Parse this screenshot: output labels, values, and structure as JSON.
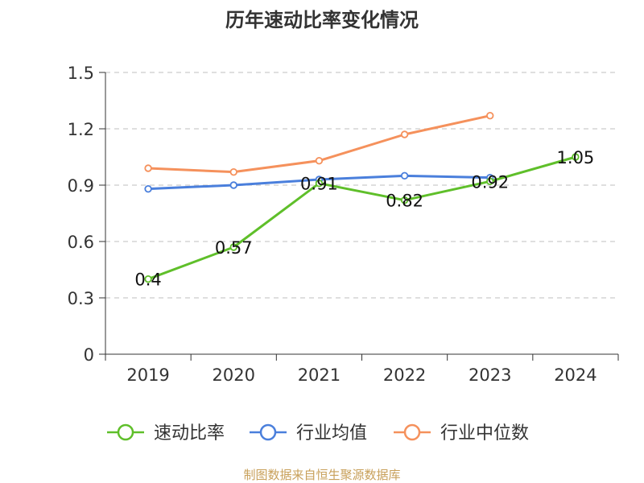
{
  "chart_data": {
    "type": "line",
    "title": "历年速动比率变化情况",
    "categories": [
      "2019",
      "2020",
      "2021",
      "2022",
      "2023",
      "2024"
    ],
    "y_ticks": [
      "0",
      "0.3",
      "0.6",
      "0.9",
      "1.2",
      "1.5"
    ],
    "ylim": [
      0,
      1.5
    ],
    "grid": true,
    "legend_position": "bottom",
    "series": [
      {
        "name": "速动比率",
        "color": "#5fbf2a",
        "values": [
          0.4,
          0.57,
          0.91,
          0.82,
          0.92,
          1.05
        ],
        "labels": [
          "0.4",
          "0.57",
          "0.91",
          "0.82",
          "0.92",
          "1.05"
        ]
      },
      {
        "name": "行业均值",
        "color": "#4a7fdc",
        "values": [
          0.88,
          0.9,
          0.93,
          0.95,
          0.94,
          null
        ]
      },
      {
        "name": "行业中位数",
        "color": "#f5915c",
        "values": [
          0.99,
          0.97,
          1.03,
          1.17,
          1.27,
          null
        ]
      }
    ],
    "source": "制图数据来自恒生聚源数据库"
  }
}
